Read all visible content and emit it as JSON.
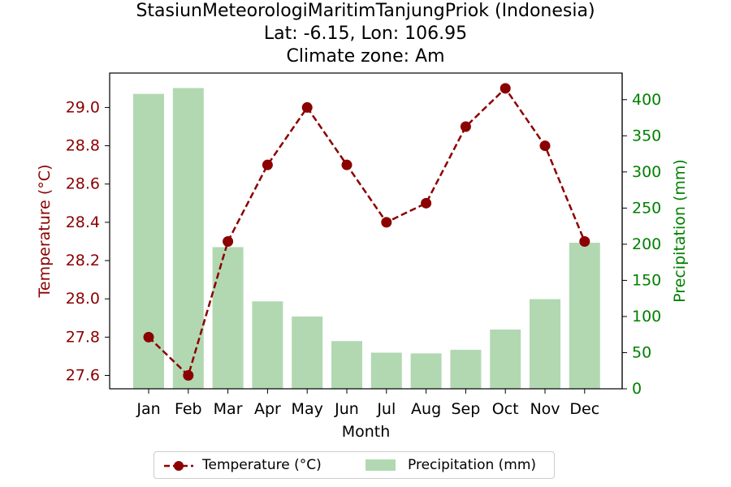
{
  "title": {
    "line1": "StasiunMeteorologiMaritimTanjungPriok (Indonesia)",
    "line2": "Lat: -6.15, Lon: 106.95",
    "line3": "Climate zone: Am"
  },
  "colors": {
    "temperature": "#8b0000",
    "precipitation_bar": "#b2d8b2",
    "precipitation_axis": "#008000"
  },
  "chart_data": {
    "type": "bar",
    "categories": [
      "Jan",
      "Feb",
      "Mar",
      "Apr",
      "May",
      "Jun",
      "Jul",
      "Aug",
      "Sep",
      "Oct",
      "Nov",
      "Dec"
    ],
    "xlabel": "Month",
    "series": [
      {
        "name": "Temperature (°C)",
        "type": "line",
        "axis": "left",
        "values": [
          27.8,
          27.6,
          28.3,
          28.7,
          29.0,
          28.7,
          28.4,
          28.5,
          28.9,
          29.1,
          28.8,
          28.3
        ]
      },
      {
        "name": "Precipitation (mm)",
        "type": "bar",
        "axis": "right",
        "values": [
          408,
          416,
          196,
          121,
          100,
          66,
          50,
          49,
          54,
          82,
          124,
          202
        ]
      }
    ],
    "y_left": {
      "label": "Temperature (°C)",
      "lim": [
        27.53,
        29.18
      ],
      "ticks": [
        27.6,
        27.8,
        28.0,
        28.2,
        28.4,
        28.6,
        28.8,
        29.0
      ],
      "tick_labels": [
        "27.6",
        "27.8",
        "28.0",
        "28.2",
        "28.4",
        "28.6",
        "28.8",
        "29.0"
      ]
    },
    "y_right": {
      "label": "Precipitation (mm)",
      "lim": [
        0,
        436.8
      ],
      "ticks": [
        0,
        50,
        100,
        150,
        200,
        250,
        300,
        350,
        400
      ],
      "tick_labels": [
        "0",
        "50",
        "100",
        "150",
        "200",
        "250",
        "300",
        "350",
        "400"
      ]
    },
    "grid": false,
    "legend_position": "bottom-center"
  },
  "legend": {
    "temperature_label": "Temperature (°C)",
    "precipitation_label": "Precipitation (mm)"
  }
}
